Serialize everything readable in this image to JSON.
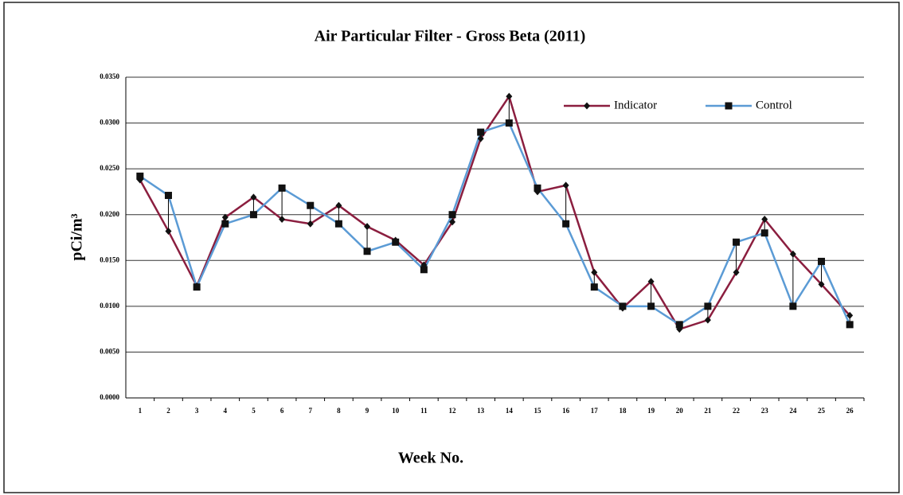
{
  "chart_data": {
    "type": "line",
    "title": "Air Particular Filter - Gross Beta (2011)",
    "xlabel": "Week No.",
    "ylabel": "pCi/m³",
    "categories": [
      "1",
      "2",
      "3",
      "4",
      "5",
      "6",
      "7",
      "8",
      "9",
      "10",
      "11",
      "12",
      "13",
      "14",
      "15",
      "16",
      "17",
      "18",
      "19",
      "20",
      "21",
      "22",
      "23",
      "24",
      "25",
      "26"
    ],
    "series": [
      {
        "name": "Indicator",
        "color": "#8b1e3f",
        "marker": "diamond",
        "values": [
          0.0238,
          0.0182,
          0.0122,
          0.0197,
          0.0219,
          0.0195,
          0.019,
          0.021,
          0.0187,
          0.0172,
          0.0145,
          0.0192,
          0.0283,
          0.0329,
          0.0225,
          0.0232,
          0.0137,
          0.0098,
          0.0127,
          0.0075,
          0.0085,
          0.0137,
          0.0195,
          0.0157,
          0.0124,
          0.009
        ]
      },
      {
        "name": "Control",
        "color": "#5b9bd5",
        "marker": "square",
        "values": [
          0.0242,
          0.0221,
          0.0121,
          0.019,
          0.02,
          0.0229,
          0.021,
          0.019,
          0.016,
          0.017,
          0.014,
          0.02,
          0.029,
          0.03,
          0.0229,
          0.019,
          0.0121,
          0.01,
          0.01,
          0.008,
          0.01,
          0.017,
          0.018,
          0.01,
          0.0149,
          0.008
        ]
      }
    ],
    "ylim": [
      0,
      0.035
    ],
    "yticks": [
      {
        "value": 0,
        "label": "0.0000"
      },
      {
        "value": 0.005,
        "label": "0.0050"
      },
      {
        "value": 0.01,
        "label": "0.0100"
      },
      {
        "value": 0.015,
        "label": "0.0150"
      },
      {
        "value": 0.02,
        "label": "0.0200"
      },
      {
        "value": 0.025,
        "label": "0.0250"
      },
      {
        "value": 0.03,
        "label": "0.0300"
      },
      {
        "value": 0.035,
        "label": "0.0350"
      }
    ],
    "grid": true,
    "high_low_lines": true,
    "legend": "top-right"
  }
}
